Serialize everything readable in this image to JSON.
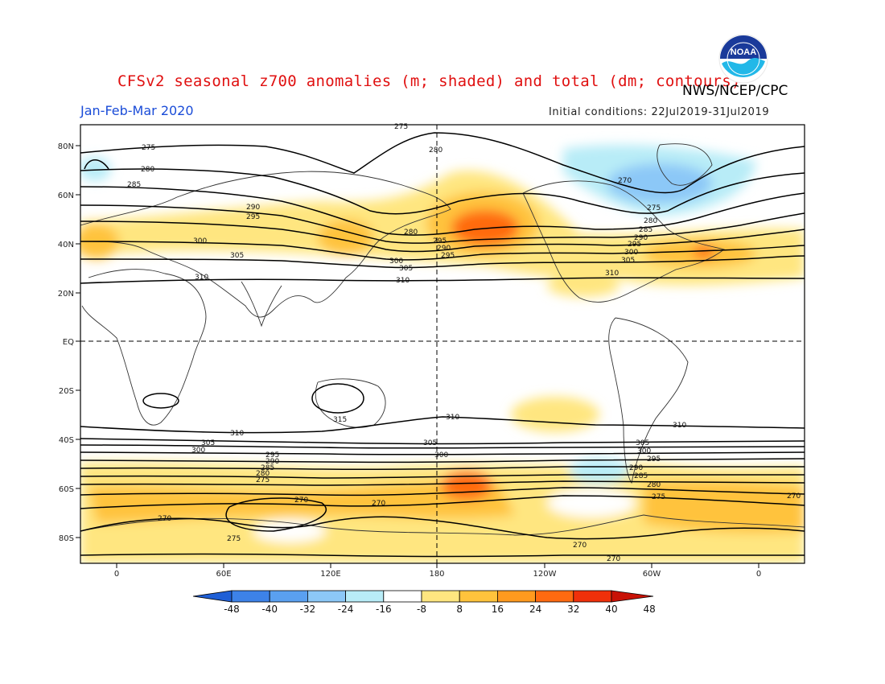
{
  "header": {
    "title": "CFSv2 seasonal z700 anomalies (m; shaded) and total (dm; contours)",
    "agency": "NWS/NCEP/CPC",
    "period": "Jan-Feb-Mar 2020",
    "initial_conditions": "Initial conditions: 22Jul2019-31Jul2019",
    "logo_text": "NOAA",
    "logo_icon": "noaa-logo-icon"
  },
  "axes": {
    "lat_ticks": [
      "80N",
      "60N",
      "40N",
      "20N",
      "EQ",
      "20S",
      "40S",
      "60S",
      "80S"
    ],
    "lon_ticks": [
      "0",
      "60E",
      "120E",
      "180",
      "120W",
      "60W",
      "0"
    ]
  },
  "contour_labels": {
    "values": [
      "275",
      "280",
      "285",
      "290",
      "295",
      "300",
      "305",
      "310",
      "270",
      "310",
      "305",
      "300",
      "295",
      "290",
      "285",
      "280",
      "275",
      "270",
      "315"
    ]
  },
  "colorbar": {
    "ticks": [
      "-48",
      "-40",
      "-32",
      "-24",
      "-16",
      "-8",
      "8",
      "16",
      "24",
      "32",
      "40",
      "48"
    ],
    "colors": [
      "#1f5fd6",
      "#3d82e8",
      "#5aa0f0",
      "#8cc8f7",
      "#b8ecf7",
      "#ffffff",
      "#ffe680",
      "#ffc33c",
      "#ff9a1e",
      "#ff6a10",
      "#f0300a",
      "#c81206"
    ]
  },
  "colors": {
    "title": "#e01010",
    "period": "#1a4cd8",
    "land_outline": "#333333",
    "contour": "#000000"
  }
}
